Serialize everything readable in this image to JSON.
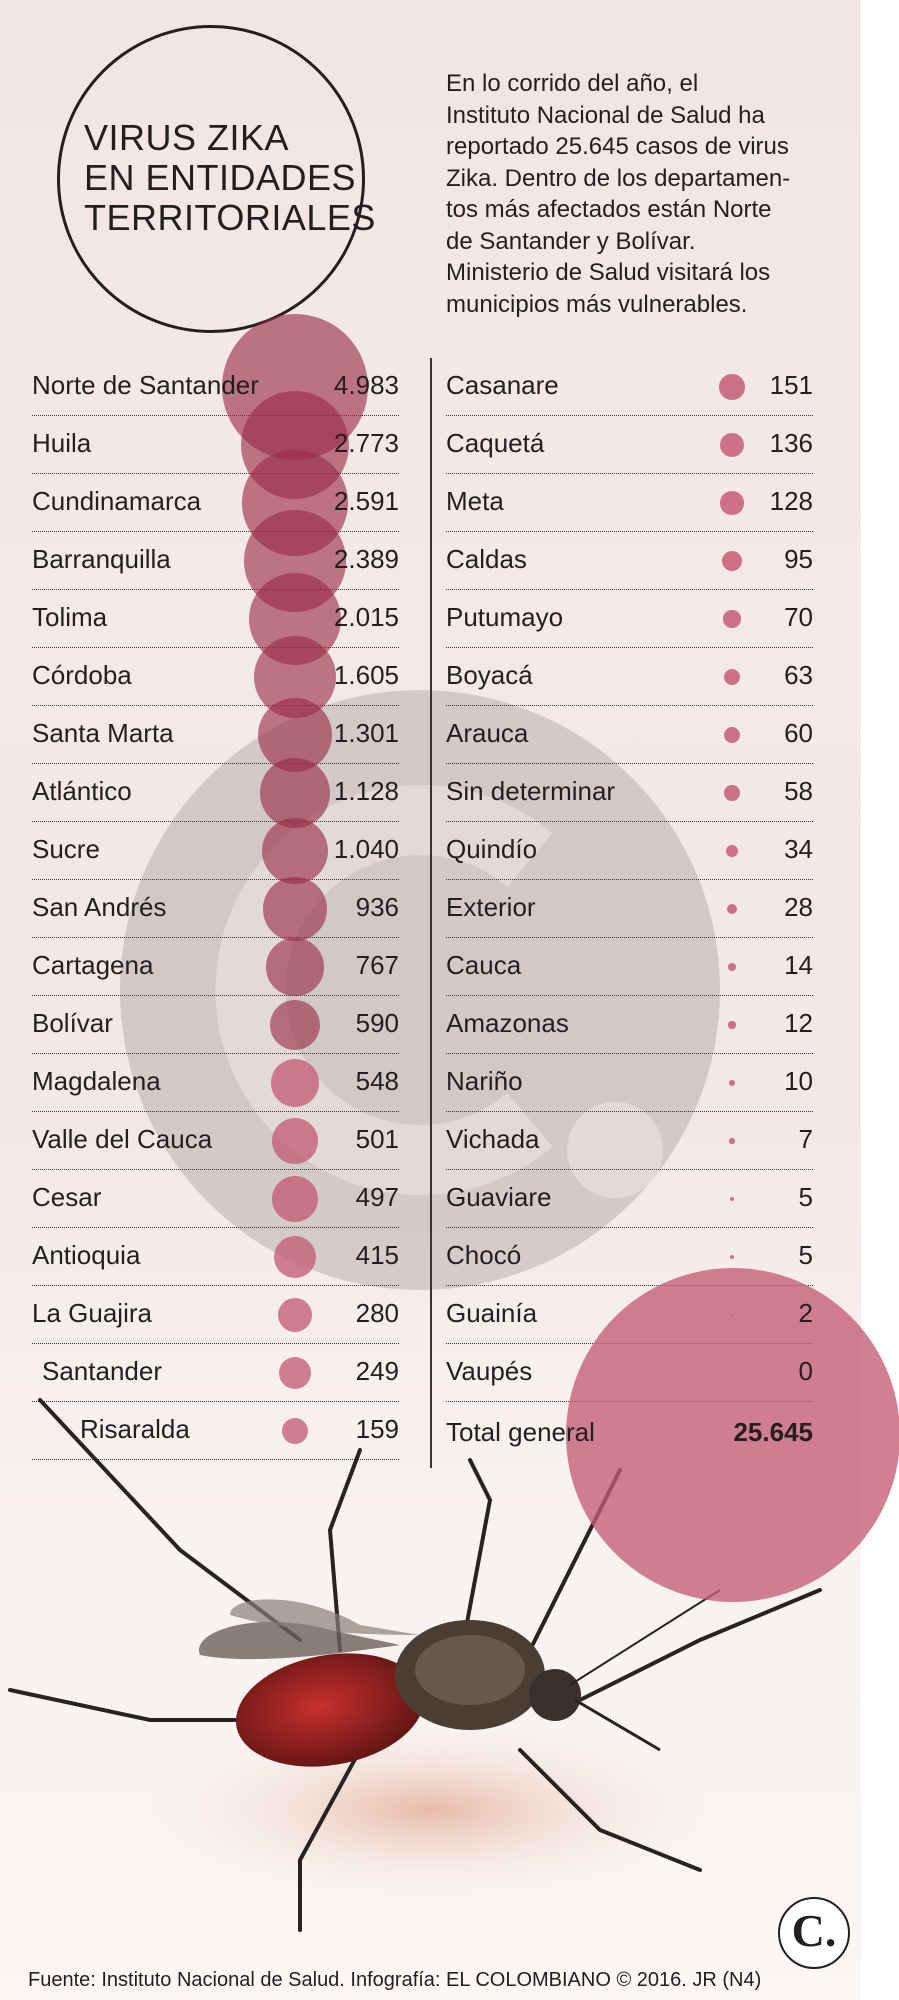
{
  "title": {
    "line1": "VIRUS ZIKA",
    "line2": "EN ENTIDADES",
    "line3": "TERRITORIALES"
  },
  "intro": [
    "En lo corrido del año, el",
    "Instituto Nacional de Salud ha",
    "reportado 25.645 casos de virus",
    "Zika. Dentro de los departamen-",
    "tos más afectados están Norte",
    "de Santander y Bolívar.",
    "Ministerio de Salud visitará los",
    "municipios más vulnerables."
  ],
  "colors": {
    "bubble": "#c45c74",
    "bubble_dark": "#9a2a45",
    "text": "#231f20",
    "watermark": "#d3cbcd"
  },
  "chart_data": {
    "type": "table",
    "columns": [
      [
        {
          "label": "Norte de Santander",
          "display": "4.983",
          "value": 4983
        },
        {
          "label": "Huila",
          "display": "2.773",
          "value": 2773
        },
        {
          "label": "Cundinamarca",
          "display": "2.591",
          "value": 2591
        },
        {
          "label": "Barranquilla",
          "display": "2.389",
          "value": 2389
        },
        {
          "label": "Tolima",
          "display": "2.015",
          "value": 2015
        },
        {
          "label": "Córdoba",
          "display": "1.605",
          "value": 1605
        },
        {
          "label": "Santa Marta",
          "display": "1.301",
          "value": 1301
        },
        {
          "label": "Atlántico",
          "display": "1.128",
          "value": 1128
        },
        {
          "label": "Sucre",
          "display": "1.040",
          "value": 1040
        },
        {
          "label": "San Andrés",
          "display": "936",
          "value": 936
        },
        {
          "label": "Cartagena",
          "display": "767",
          "value": 767
        },
        {
          "label": "Bolívar",
          "display": "590",
          "value": 590
        },
        {
          "label": "Magdalena",
          "display": "548",
          "value": 548
        },
        {
          "label": "Valle del Cauca",
          "display": "501",
          "value": 501
        },
        {
          "label": "Cesar",
          "display": "497",
          "value": 497
        },
        {
          "label": "Antioquia",
          "display": "415",
          "value": 415
        },
        {
          "label": "La Guajira",
          "display": "280",
          "value": 280
        },
        {
          "label": "Santander",
          "display": "249",
          "value": 249
        },
        {
          "label": "Risaralda",
          "display": "159",
          "value": 159
        }
      ],
      [
        {
          "label": "Casanare",
          "display": "151",
          "value": 151
        },
        {
          "label": "Caquetá",
          "display": "136",
          "value": 136
        },
        {
          "label": "Meta",
          "display": "128",
          "value": 128
        },
        {
          "label": "Caldas",
          "display": "95",
          "value": 95
        },
        {
          "label": "Putumayo",
          "display": "70",
          "value": 70
        },
        {
          "label": "Boyacá",
          "display": "63",
          "value": 63
        },
        {
          "label": "Arauca",
          "display": "60",
          "value": 60
        },
        {
          "label": "Sin determinar",
          "display": "58",
          "value": 58
        },
        {
          "label": "Quindío",
          "display": "34",
          "value": 34
        },
        {
          "label": "Exterior",
          "display": "28",
          "value": 28
        },
        {
          "label": "Cauca",
          "display": "14",
          "value": 14
        },
        {
          "label": "Amazonas",
          "display": "12",
          "value": 12
        },
        {
          "label": "Nariño",
          "display": "10",
          "value": 10
        },
        {
          "label": "Vichada",
          "display": "7",
          "value": 7
        },
        {
          "label": "Guaviare",
          "display": "5",
          "value": 5
        },
        {
          "label": "Chocó",
          "display": "5",
          "value": 5
        },
        {
          "label": "Guainía",
          "display": "2",
          "value": 2
        },
        {
          "label": "Vaupés",
          "display": "0",
          "value": 0
        }
      ]
    ],
    "total": {
      "label": "Total general",
      "display": "25.645",
      "value": 25645
    }
  },
  "logo": {
    "letter": "C."
  },
  "source": "Fuente: Instituto Nacional de Salud. Infografía: EL COLOMBIANO © 2016. JR (N4)"
}
